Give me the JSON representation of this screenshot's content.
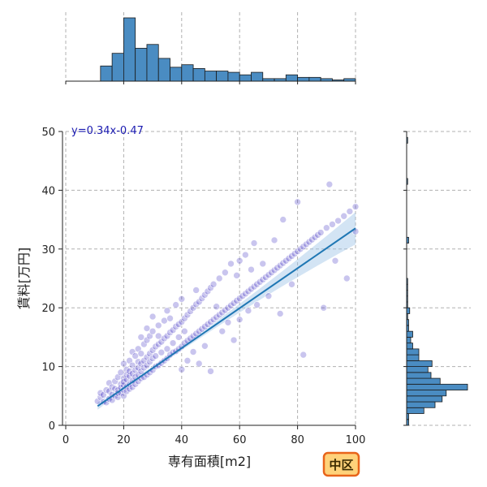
{
  "chart_data": {
    "type": "scatter",
    "xlabel": "専有面積[m2]",
    "ylabel": "賃料[万円]",
    "xlim": [
      0,
      100
    ],
    "ylim": [
      0,
      50
    ],
    "xticks": [
      0,
      20,
      40,
      60,
      80,
      100
    ],
    "yticks": [
      0,
      10,
      20,
      30,
      40,
      50
    ],
    "grid": true,
    "annotation": "y=0.34x-0.47",
    "badge": "中区",
    "colors": {
      "points": "#3c2fc2",
      "regression": "#1f77b4",
      "ci_band": "#9ec3e6",
      "hist_fill": "#4a8cc2",
      "badge_fill": "#ffd27a",
      "badge_border": "#e8641a"
    },
    "regression": {
      "slope": 0.34,
      "intercept": -0.47,
      "x_range": [
        11,
        100
      ]
    },
    "top_histogram": {
      "x": "専有面積[m2]",
      "bin_edges": [
        0,
        4,
        8,
        12,
        16,
        20,
        24,
        28,
        32,
        36,
        40,
        44,
        48,
        52,
        56,
        60,
        64,
        68,
        72,
        76,
        80,
        84,
        88,
        92,
        96,
        100
      ],
      "counts": [
        0,
        0,
        0,
        24,
        44,
        100,
        52,
        58,
        36,
        22,
        26,
        20,
        16,
        16,
        14,
        10,
        14,
        4,
        4,
        10,
        6,
        6,
        4,
        2,
        4
      ]
    },
    "right_histogram": {
      "y": "賃料[万円]",
      "bin_edges": [
        0,
        1,
        2,
        3,
        4,
        5,
        6,
        7,
        8,
        9,
        10,
        11,
        12,
        13,
        14,
        15,
        16,
        17,
        18,
        19,
        20,
        21,
        22,
        23,
        24,
        25,
        26,
        27,
        28,
        29,
        30,
        31,
        32,
        33,
        34,
        35,
        36,
        37,
        38,
        39,
        40,
        41,
        42,
        43,
        44,
        45,
        46,
        47,
        48,
        49,
        50
      ],
      "counts": [
        2,
        2,
        17,
        28,
        35,
        39,
        60,
        33,
        24,
        21,
        25,
        12,
        12,
        6,
        4,
        6,
        2,
        2,
        1,
        3,
        1,
        1,
        1,
        1,
        1,
        0,
        0,
        0,
        0,
        0,
        0,
        2,
        0,
        0,
        0,
        0,
        0,
        0,
        0,
        0,
        0,
        1,
        0,
        0,
        0,
        0,
        0,
        0,
        1,
        0
      ]
    },
    "points": [
      [
        11,
        4.1
      ],
      [
        12,
        4.8
      ],
      [
        12,
        5.5
      ],
      [
        13,
        4.0
      ],
      [
        13,
        5.2
      ],
      [
        14,
        3.9
      ],
      [
        14,
        6.0
      ],
      [
        15,
        4.5
      ],
      [
        15,
        5.8
      ],
      [
        15,
        7.2
      ],
      [
        16,
        4.3
      ],
      [
        16,
        6.5
      ],
      [
        16,
        5.2
      ],
      [
        17,
        5.0
      ],
      [
        17,
        7.5
      ],
      [
        17,
        6.2
      ],
      [
        18,
        4.8
      ],
      [
        18,
        6.0
      ],
      [
        18,
        8.2
      ],
      [
        18,
        5.5
      ],
      [
        19,
        5.5
      ],
      [
        19,
        7.0
      ],
      [
        19,
        9.0
      ],
      [
        19,
        6.4
      ],
      [
        20,
        5.0
      ],
      [
        20,
        6.8
      ],
      [
        20,
        8.0
      ],
      [
        20,
        10.5
      ],
      [
        20,
        7.4
      ],
      [
        20,
        6.0
      ],
      [
        21,
        5.8
      ],
      [
        21,
        7.8
      ],
      [
        21,
        9.5
      ],
      [
        21,
        6.6
      ],
      [
        21,
        8.6
      ],
      [
        22,
        6.2
      ],
      [
        22,
        8.4
      ],
      [
        22,
        11.0
      ],
      [
        22,
        7.0
      ],
      [
        22,
        9.2
      ],
      [
        23,
        6.5
      ],
      [
        23,
        8.8
      ],
      [
        23,
        10.2
      ],
      [
        23,
        7.6
      ],
      [
        23,
        12.5
      ],
      [
        24,
        7.0
      ],
      [
        24,
        9.4
      ],
      [
        24,
        11.8
      ],
      [
        24,
        8.2
      ],
      [
        25,
        7.5
      ],
      [
        25,
        9.8
      ],
      [
        25,
        13.0
      ],
      [
        25,
        10.8
      ],
      [
        25,
        8.6
      ],
      [
        26,
        8.0
      ],
      [
        26,
        10.5
      ],
      [
        26,
        12.2
      ],
      [
        26,
        15.0
      ],
      [
        26,
        9.2
      ],
      [
        27,
        8.2
      ],
      [
        27,
        11.0
      ],
      [
        27,
        13.8
      ],
      [
        27,
        9.8
      ],
      [
        28,
        8.6
      ],
      [
        28,
        11.6
      ],
      [
        28,
        14.5
      ],
      [
        28,
        10.2
      ],
      [
        28,
        16.5
      ],
      [
        29,
        9.0
      ],
      [
        29,
        12.2
      ],
      [
        29,
        15.2
      ],
      [
        29,
        10.8
      ],
      [
        30,
        9.4
      ],
      [
        30,
        12.8
      ],
      [
        30,
        16.0
      ],
      [
        30,
        11.4
      ],
      [
        30,
        18.5
      ],
      [
        31,
        10.0
      ],
      [
        31,
        13.4
      ],
      [
        31,
        11.8
      ],
      [
        32,
        10.2
      ],
      [
        32,
        13.8
      ],
      [
        32,
        17.0
      ],
      [
        32,
        15.2
      ],
      [
        33,
        10.6
      ],
      [
        33,
        14.2
      ],
      [
        33,
        12.4
      ],
      [
        34,
        11.0
      ],
      [
        34,
        14.8
      ],
      [
        34,
        17.8
      ],
      [
        35,
        11.4
      ],
      [
        35,
        15.2
      ],
      [
        35,
        13.0
      ],
      [
        35,
        19.5
      ],
      [
        36,
        12.0
      ],
      [
        36,
        15.8
      ],
      [
        36,
        18.2
      ],
      [
        37,
        12.4
      ],
      [
        37,
        16.2
      ],
      [
        37,
        14.0
      ],
      [
        38,
        12.6
      ],
      [
        38,
        16.8
      ],
      [
        38,
        20.5
      ],
      [
        39,
        13.0
      ],
      [
        39,
        17.2
      ],
      [
        39,
        15.0
      ],
      [
        40,
        13.4
      ],
      [
        40,
        17.6
      ],
      [
        40,
        21.5
      ],
      [
        40,
        9.5
      ],
      [
        41,
        14.0
      ],
      [
        41,
        18.2
      ],
      [
        41,
        16.0
      ],
      [
        42,
        14.4
      ],
      [
        42,
        18.8
      ],
      [
        42,
        11.0
      ],
      [
        43,
        14.8
      ],
      [
        43,
        19.4
      ],
      [
        44,
        15.2
      ],
      [
        44,
        20.0
      ],
      [
        44,
        12.5
      ],
      [
        45,
        15.6
      ],
      [
        45,
        20.6
      ],
      [
        45,
        23.0
      ],
      [
        46,
        16.0
      ],
      [
        46,
        21.0
      ],
      [
        46,
        10.5
      ],
      [
        47,
        16.4
      ],
      [
        47,
        21.6
      ],
      [
        48,
        16.8
      ],
      [
        48,
        22.2
      ],
      [
        48,
        13.5
      ],
      [
        49,
        17.2
      ],
      [
        49,
        22.8
      ],
      [
        50,
        17.6
      ],
      [
        50,
        23.4
      ],
      [
        50,
        9.2
      ],
      [
        51,
        18.0
      ],
      [
        51,
        24.0
      ],
      [
        52,
        18.4
      ],
      [
        52,
        20.2
      ],
      [
        53,
        18.8
      ],
      [
        53,
        25.0
      ],
      [
        54,
        19.2
      ],
      [
        54,
        16.0
      ],
      [
        55,
        19.6
      ],
      [
        55,
        26.0
      ],
      [
        56,
        20.0
      ],
      [
        56,
        17.5
      ],
      [
        57,
        20.4
      ],
      [
        57,
        27.5
      ],
      [
        58,
        20.8
      ],
      [
        58,
        14.5
      ],
      [
        59,
        21.2
      ],
      [
        59,
        25.5
      ],
      [
        60,
        21.6
      ],
      [
        60,
        28.0
      ],
      [
        60,
        18.0
      ],
      [
        61,
        22.0
      ],
      [
        62,
        22.4
      ],
      [
        62,
        29.0
      ],
      [
        63,
        22.8
      ],
      [
        63,
        19.5
      ],
      [
        64,
        23.2
      ],
      [
        64,
        26.5
      ],
      [
        65,
        23.6
      ],
      [
        65,
        31.0
      ],
      [
        66,
        24.0
      ],
      [
        66,
        20.5
      ],
      [
        67,
        24.4
      ],
      [
        68,
        24.8
      ],
      [
        68,
        27.5
      ],
      [
        69,
        25.2
      ],
      [
        70,
        25.6
      ],
      [
        70,
        22.0
      ],
      [
        71,
        26.0
      ],
      [
        72,
        26.4
      ],
      [
        72,
        31.5
      ],
      [
        73,
        26.8
      ],
      [
        74,
        27.2
      ],
      [
        74,
        19.0
      ],
      [
        75,
        27.6
      ],
      [
        75,
        35.0
      ],
      [
        76,
        28.0
      ],
      [
        77,
        28.4
      ],
      [
        78,
        28.8
      ],
      [
        78,
        24.0
      ],
      [
        79,
        29.2
      ],
      [
        80,
        29.6
      ],
      [
        80,
        38.0
      ],
      [
        81,
        30.0
      ],
      [
        82,
        30.4
      ],
      [
        82,
        12.0
      ],
      [
        83,
        30.8
      ],
      [
        84,
        31.2
      ],
      [
        85,
        31.6
      ],
      [
        86,
        32.0
      ],
      [
        87,
        32.4
      ],
      [
        88,
        32.8
      ],
      [
        90,
        33.6
      ],
      [
        91,
        41.0
      ],
      [
        92,
        34.2
      ],
      [
        94,
        34.8
      ],
      [
        96,
        35.6
      ],
      [
        98,
        36.4
      ],
      [
        100,
        37.2
      ],
      [
        100,
        33.0
      ],
      [
        97,
        25.0
      ],
      [
        93,
        28.0
      ],
      [
        89,
        20.0
      ]
    ]
  }
}
